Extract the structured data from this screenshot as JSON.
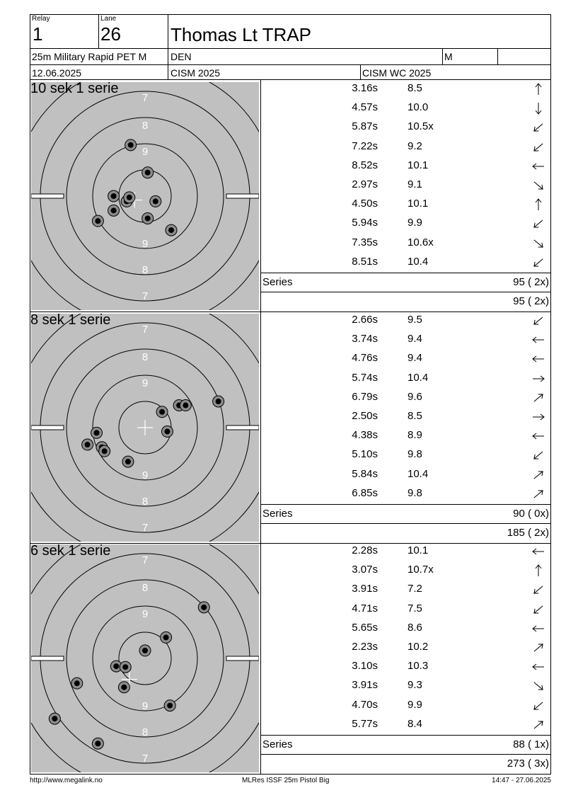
{
  "header": {
    "relay_label": "Relay",
    "relay_value": "1",
    "lane_label": "Lane",
    "lane_value": "26",
    "athlete_name": "Thomas Lt TRAP",
    "event": "25m Military Rapid PET M",
    "nation": "DEN",
    "gender": "M",
    "date": "12.06.2025",
    "competition": "CISM 2025",
    "championship": "CISM WC 2025"
  },
  "series": [
    {
      "title": "10 sek 1 serie",
      "shots": [
        {
          "time": "3.16s",
          "score": "8.5",
          "dir": "up"
        },
        {
          "time": "4.57s",
          "score": "10.0",
          "dir": "down"
        },
        {
          "time": "5.87s",
          "score": "10.5x",
          "dir": "down-left"
        },
        {
          "time": "7.22s",
          "score": "9.2",
          "dir": "down-left"
        },
        {
          "time": "8.52s",
          "score": "10.1",
          "dir": "left"
        },
        {
          "time": "2.97s",
          "score": "9.1",
          "dir": "down-right"
        },
        {
          "time": "4.50s",
          "score": "10.1",
          "dir": "up"
        },
        {
          "time": "5.94s",
          "score": "9.9",
          "dir": "down-left"
        },
        {
          "time": "7.35s",
          "score": "10.6x",
          "dir": "down-right"
        },
        {
          "time": "8.51s",
          "score": "10.4",
          "dir": "down-left"
        }
      ],
      "series_label": "Series",
      "series_total": "95 ( 2x)",
      "running_total": "95 ( 2x)",
      "hits": [
        [
          -0.55,
          -1.95
        ],
        [
          0.1,
          -0.9
        ],
        [
          -1.2,
          0.0
        ],
        [
          -0.7,
          0.2
        ],
        [
          -0.6,
          0.05
        ],
        [
          0.4,
          0.2
        ],
        [
          -1.2,
          0.55
        ],
        [
          0.1,
          0.85
        ],
        [
          -1.8,
          0.95
        ],
        [
          1.0,
          1.3
        ]
      ],
      "crosshair": [
        -0.4,
        0.15
      ]
    },
    {
      "title": "8 sek 1 serie",
      "shots": [
        {
          "time": "2.66s",
          "score": "9.5",
          "dir": "down-left"
        },
        {
          "time": "3.74s",
          "score": "9.4",
          "dir": "left"
        },
        {
          "time": "4.76s",
          "score": "9.4",
          "dir": "left"
        },
        {
          "time": "5.74s",
          "score": "10.4",
          "dir": "right"
        },
        {
          "time": "6.79s",
          "score": "9.6",
          "dir": "up-right"
        },
        {
          "time": "2.50s",
          "score": "8.5",
          "dir": "right"
        },
        {
          "time": "4.38s",
          "score": "8.9",
          "dir": "left"
        },
        {
          "time": "5.10s",
          "score": "9.8",
          "dir": "down-left"
        },
        {
          "time": "5.84s",
          "score": "10.4",
          "dir": "up-right"
        },
        {
          "time": "6.85s",
          "score": "9.8",
          "dir": "up-right"
        }
      ],
      "series_label": "Series",
      "series_total": "90 ( 0x)",
      "running_total": "185 ( 2x)",
      "hits": [
        [
          2.8,
          -1.0
        ],
        [
          1.3,
          -0.85
        ],
        [
          1.55,
          -0.85
        ],
        [
          0.65,
          -0.6
        ],
        [
          0.85,
          0.15
        ],
        [
          -1.85,
          0.2
        ],
        [
          -2.2,
          0.65
        ],
        [
          -1.65,
          0.75
        ],
        [
          -1.55,
          0.9
        ],
        [
          -0.65,
          1.3
        ]
      ],
      "crosshair": [
        0.0,
        0.0
      ]
    },
    {
      "title": "6 sek 1 serie",
      "shots": [
        {
          "time": "2.28s",
          "score": "10.1",
          "dir": "left"
        },
        {
          "time": "3.07s",
          "score": "10.7x",
          "dir": "up"
        },
        {
          "time": "3.91s",
          "score": "7.2",
          "dir": "down-left"
        },
        {
          "time": "4.71s",
          "score": "7.5",
          "dir": "down-left"
        },
        {
          "time": "5.65s",
          "score": "8.6",
          "dir": "left"
        },
        {
          "time": "2.23s",
          "score": "10.2",
          "dir": "up-right"
        },
        {
          "time": "3.10s",
          "score": "10.3",
          "dir": "left"
        },
        {
          "time": "3.91s",
          "score": "9.3",
          "dir": "down-right"
        },
        {
          "time": "4.70s",
          "score": "9.9",
          "dir": "down-left"
        },
        {
          "time": "5.77s",
          "score": "8.4",
          "dir": "up-right"
        }
      ],
      "series_label": "Series",
      "series_total": "88 ( 1x)",
      "running_total": "273 ( 3x)",
      "hits": [
        [
          2.25,
          -1.95
        ],
        [
          0.8,
          -0.8
        ],
        [
          0.0,
          -0.3
        ],
        [
          -1.1,
          0.3
        ],
        [
          -0.75,
          0.33
        ],
        [
          -2.6,
          0.95
        ],
        [
          -0.8,
          1.1
        ],
        [
          0.95,
          1.8
        ],
        [
          -3.45,
          2.3
        ],
        [
          -1.8,
          3.25
        ]
      ],
      "crosshair": [
        -0.6,
        0.8
      ]
    }
  ],
  "footer": {
    "url": "http://www.megalink.no",
    "software": "MLRes ISSF 25m Pistol Big",
    "timestamp": "14:47 - 27.06.2025"
  },
  "ring_numbers": {
    "outer": "7",
    "middle": "8",
    "inner": "9"
  }
}
